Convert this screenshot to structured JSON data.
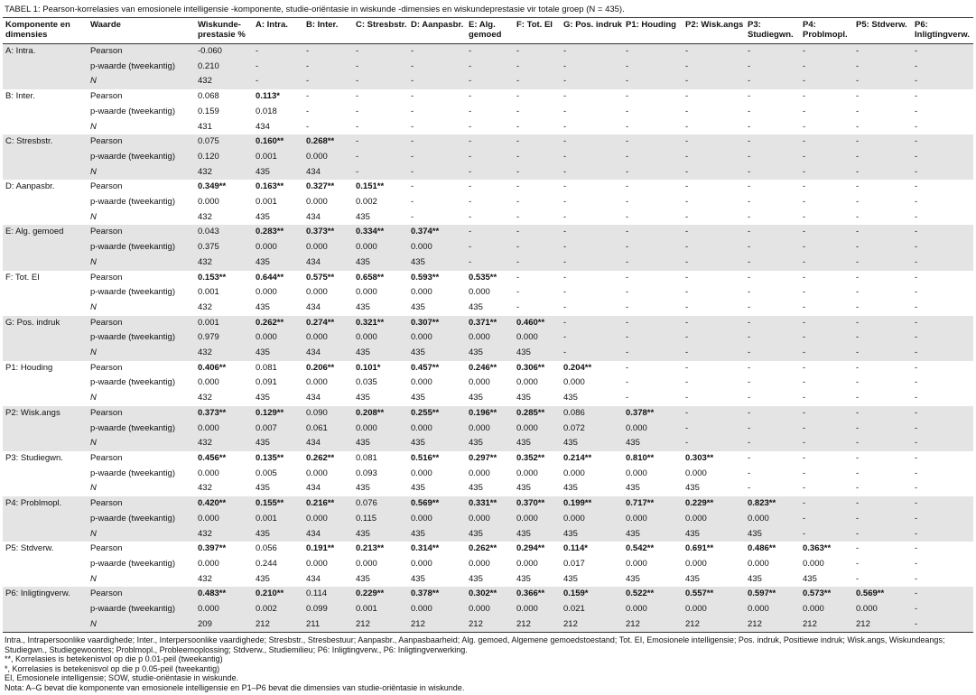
{
  "title": "TABEL 1: Pearson-korrelasies van emosionele intelligensie -komponente, studie-oriëntasie in wiskunde -dimensies en wiskundeprestasie vir totale groep (N = 435).",
  "columns": [
    "Komponente en dimensies",
    "Waarde",
    "Wiskunde-prestasie %",
    "A: Intra.",
    "B: Inter.",
    "C: Stresbstr.",
    "D: Aanpasbr.",
    "E: Alg. gemoed",
    "F: Tot. EI",
    "G: Pos. indruk",
    "P1: Houding",
    "P2: Wisk.angs",
    "P3: Studiegwn.",
    "P4: Problmopl.",
    "P5: Stdverw.",
    "P6: Inligtingverw."
  ],
  "groups": [
    {
      "label": "A: Intra.",
      "rows": [
        {
          "label": "Pearson",
          "cells": [
            "-0.060",
            "-",
            "-",
            "-",
            "-",
            "-",
            "-",
            "-",
            "-",
            "-",
            "-",
            "-",
            "-",
            "-"
          ]
        },
        {
          "label": "p-waarde (tweekantig)",
          "cells": [
            "0.210",
            "-",
            "-",
            "-",
            "-",
            "-",
            "-",
            "-",
            "-",
            "-",
            "-",
            "-",
            "-",
            "-"
          ]
        },
        {
          "label": "N",
          "cells": [
            "432",
            "-",
            "-",
            "-",
            "-",
            "-",
            "-",
            "-",
            "-",
            "-",
            "-",
            "-",
            "-",
            "-"
          ]
        }
      ]
    },
    {
      "label": "B: Inter.",
      "rows": [
        {
          "label": "Pearson",
          "cells": [
            "0.068",
            "0.113*",
            "-",
            "-",
            "-",
            "-",
            "-",
            "-",
            "-",
            "-",
            "-",
            "-",
            "-",
            "-"
          ]
        },
        {
          "label": "p-waarde (tweekantig)",
          "cells": [
            "0.159",
            "0.018",
            "-",
            "-",
            "-",
            "-",
            "-",
            "-",
            "-",
            "-",
            "-",
            "-",
            "-",
            "-"
          ]
        },
        {
          "label": "N",
          "cells": [
            "431",
            "434",
            "-",
            "-",
            "-",
            "-",
            "-",
            "-",
            "-",
            "-",
            "-",
            "-",
            "-",
            "-"
          ]
        }
      ]
    },
    {
      "label": "C: Stresbstr.",
      "rows": [
        {
          "label": "Pearson",
          "cells": [
            "0.075",
            "0.160**",
            "0.268**",
            "-",
            "-",
            "-",
            "-",
            "-",
            "-",
            "-",
            "-",
            "-",
            "-",
            "-"
          ]
        },
        {
          "label": "p-waarde (tweekantig)",
          "cells": [
            "0.120",
            "0.001",
            "0.000",
            "-",
            "-",
            "-",
            "-",
            "-",
            "-",
            "-",
            "-",
            "-",
            "-",
            "-"
          ]
        },
        {
          "label": "N",
          "cells": [
            "432",
            "435",
            "434",
            "-",
            "-",
            "-",
            "-",
            "-",
            "-",
            "-",
            "-",
            "-",
            "-",
            "-"
          ]
        }
      ]
    },
    {
      "label": "D: Aanpasbr.",
      "rows": [
        {
          "label": "Pearson",
          "cells": [
            "0.349**",
            "0.163**",
            "0.327**",
            "0.151**",
            "-",
            "-",
            "-",
            "-",
            "-",
            "-",
            "-",
            "-",
            "-",
            "-"
          ]
        },
        {
          "label": "p-waarde (tweekantig)",
          "cells": [
            "0.000",
            "0.001",
            "0.000",
            "0.002",
            "-",
            "-",
            "-",
            "-",
            "-",
            "-",
            "-",
            "-",
            "-",
            "-"
          ]
        },
        {
          "label": "N",
          "cells": [
            "432",
            "435",
            "434",
            "435",
            "-",
            "-",
            "-",
            "-",
            "-",
            "-",
            "-",
            "-",
            "-",
            "-"
          ]
        }
      ]
    },
    {
      "label": "E: Alg. gemoed",
      "rows": [
        {
          "label": "Pearson",
          "cells": [
            "0.043",
            "0.283**",
            "0.373**",
            "0.334**",
            "0.374**",
            "-",
            "-",
            "-",
            "-",
            "-",
            "-",
            "-",
            "-",
            "-"
          ]
        },
        {
          "label": "p-waarde (tweekantig)",
          "cells": [
            "0.375",
            "0.000",
            "0.000",
            "0.000",
            "0.000",
            "-",
            "-",
            "-",
            "-",
            "-",
            "-",
            "-",
            "-",
            "-"
          ]
        },
        {
          "label": "N",
          "cells": [
            "432",
            "435",
            "434",
            "435",
            "435",
            "-",
            "-",
            "-",
            "-",
            "-",
            "-",
            "-",
            "-",
            "-"
          ]
        }
      ]
    },
    {
      "label": "F: Tot. EI",
      "rows": [
        {
          "label": "Pearson",
          "cells": [
            "0.153**",
            "0.644**",
            "0.575**",
            "0.658**",
            "0.593**",
            "0.535**",
            "-",
            "-",
            "-",
            "-",
            "-",
            "-",
            "-",
            "-"
          ]
        },
        {
          "label": "p-waarde (tweekantig)",
          "cells": [
            "0.001",
            "0.000",
            "0.000",
            "0.000",
            "0.000",
            "0.000",
            "-",
            "-",
            "-",
            "-",
            "-",
            "-",
            "-",
            "-"
          ]
        },
        {
          "label": "N",
          "cells": [
            "432",
            "435",
            "434",
            "435",
            "435",
            "435",
            "-",
            "-",
            "-",
            "-",
            "-",
            "-",
            "-",
            "-"
          ]
        }
      ]
    },
    {
      "label": "G: Pos. indruk",
      "rows": [
        {
          "label": "Pearson",
          "cells": [
            "0.001",
            "0.262**",
            "0.274**",
            "0.321**",
            "0.307**",
            "0.371**",
            "0.460**",
            "-",
            "-",
            "-",
            "-",
            "-",
            "-",
            "-"
          ]
        },
        {
          "label": "p-waarde (tweekantig)",
          "cells": [
            "0.979",
            "0.000",
            "0.000",
            "0.000",
            "0.000",
            "0.000",
            "0.000",
            "-",
            "-",
            "-",
            "-",
            "-",
            "-",
            "-"
          ]
        },
        {
          "label": "N",
          "cells": [
            "432",
            "435",
            "434",
            "435",
            "435",
            "435",
            "435",
            "-",
            "-",
            "-",
            "-",
            "-",
            "-",
            "-"
          ]
        }
      ]
    },
    {
      "label": "P1: Houding",
      "rows": [
        {
          "label": "Pearson",
          "cells": [
            "0.406**",
            "0.081",
            "0.206**",
            "0.101*",
            "0.457**",
            "0.246**",
            "0.306**",
            "0.204**",
            "-",
            "-",
            "-",
            "-",
            "-",
            "-"
          ]
        },
        {
          "label": "p-waarde (tweekantig)",
          "cells": [
            "0.000",
            "0.091",
            "0.000",
            "0.035",
            "0.000",
            "0.000",
            "0.000",
            "0.000",
            "-",
            "-",
            "-",
            "-",
            "-",
            "-"
          ]
        },
        {
          "label": "N",
          "cells": [
            "432",
            "435",
            "434",
            "435",
            "435",
            "435",
            "435",
            "435",
            "-",
            "-",
            "-",
            "-",
            "-",
            "-"
          ]
        }
      ]
    },
    {
      "label": "P2: Wisk.angs",
      "rows": [
        {
          "label": "Pearson",
          "cells": [
            "0.373**",
            "0.129**",
            "0.090",
            "0.208**",
            "0.255**",
            "0.196**",
            "0.285**",
            "0.086",
            "0.378**",
            "-",
            "-",
            "-",
            "-",
            "-"
          ]
        },
        {
          "label": "p-waarde (tweekantig)",
          "cells": [
            "0.000",
            "0.007",
            "0.061",
            "0.000",
            "0.000",
            "0.000",
            "0.000",
            "0.072",
            "0.000",
            "-",
            "-",
            "-",
            "-",
            "-"
          ]
        },
        {
          "label": "N",
          "cells": [
            "432",
            "435",
            "434",
            "435",
            "435",
            "435",
            "435",
            "435",
            "435",
            "-",
            "-",
            "-",
            "-",
            "-"
          ]
        }
      ]
    },
    {
      "label": "P3: Studiegwn.",
      "rows": [
        {
          "label": "Pearson",
          "cells": [
            "0.456**",
            "0.135**",
            "0.262**",
            "0.081",
            "0.516**",
            "0.297**",
            "0.352**",
            "0.214**",
            "0.810**",
            "0.303**",
            "-",
            "-",
            "-",
            "-"
          ]
        },
        {
          "label": "p-waarde (tweekantig)",
          "cells": [
            "0.000",
            "0.005",
            "0.000",
            "0.093",
            "0.000",
            "0.000",
            "0.000",
            "0.000",
            "0.000",
            "0.000",
            "-",
            "-",
            "-",
            "-"
          ]
        },
        {
          "label": "N",
          "cells": [
            "432",
            "435",
            "434",
            "435",
            "435",
            "435",
            "435",
            "435",
            "435",
            "435",
            "-",
            "-",
            "-",
            "-"
          ]
        }
      ]
    },
    {
      "label": "P4: Problmopl.",
      "rows": [
        {
          "label": "Pearson",
          "cells": [
            "0.420**",
            "0.155**",
            "0.216**",
            "0.076",
            "0.569**",
            "0.331**",
            "0.370**",
            "0.199**",
            "0.717**",
            "0.229**",
            "0.823**",
            "-",
            "-",
            "-"
          ]
        },
        {
          "label": "p-waarde (tweekantig)",
          "cells": [
            "0.000",
            "0.001",
            "0.000",
            "0.115",
            "0.000",
            "0.000",
            "0.000",
            "0.000",
            "0.000",
            "0.000",
            "0.000",
            "-",
            "-",
            "-"
          ]
        },
        {
          "label": "N",
          "cells": [
            "432",
            "435",
            "434",
            "435",
            "435",
            "435",
            "435",
            "435",
            "435",
            "435",
            "435",
            "-",
            "-",
            "-"
          ]
        }
      ]
    },
    {
      "label": "P5: Stdverw.",
      "rows": [
        {
          "label": "Pearson",
          "cells": [
            "0.397**",
            "0.056",
            "0.191**",
            "0.213**",
            "0.314**",
            "0.262**",
            "0.294**",
            "0.114*",
            "0.542**",
            "0.691**",
            "0.486**",
            "0.363**",
            "-",
            "-"
          ]
        },
        {
          "label": "p-waarde (tweekantig)",
          "cells": [
            "0.000",
            "0.244",
            "0.000",
            "0.000",
            "0.000",
            "0.000",
            "0.000",
            "0.017",
            "0.000",
            "0.000",
            "0.000",
            "0.000",
            "-",
            "-"
          ]
        },
        {
          "label": "N",
          "cells": [
            "432",
            "435",
            "434",
            "435",
            "435",
            "435",
            "435",
            "435",
            "435",
            "435",
            "435",
            "435",
            "-",
            "-"
          ]
        }
      ]
    },
    {
      "label": "P6: Inligtingverw.",
      "rows": [
        {
          "label": "Pearson",
          "cells": [
            "0.483**",
            "0.210**",
            "0.114",
            "0.229**",
            "0.378**",
            "0.302**",
            "0.366**",
            "0.159*",
            "0.522**",
            "0.557**",
            "0.597**",
            "0.573**",
            "0.569**",
            "-"
          ]
        },
        {
          "label": "p-waarde (tweekantig)",
          "cells": [
            "0.000",
            "0.002",
            "0.099",
            "0.001",
            "0.000",
            "0.000",
            "0.000",
            "0.021",
            "0.000",
            "0.000",
            "0.000",
            "0.000",
            "0.000",
            "-"
          ]
        },
        {
          "label": "N",
          "cells": [
            "209",
            "212",
            "211",
            "212",
            "212",
            "212",
            "212",
            "212",
            "212",
            "212",
            "212",
            "212",
            "212",
            "-"
          ]
        }
      ]
    }
  ],
  "footnotes": [
    "Intra., Intrapersoonlike vaardighede; Inter., Interpersoonlike vaardighede; Stresbstr., Stresbestuur; Aanpasbr., Aanpasbaarheid; Alg. gemoed, Algemene gemoedstoestand; Tot. EI, Emosionele intelligensie; Pos. indruk, Positiewe indruk; Wisk.angs, Wiskundeangs; Studiegwn., Studiegewoontes; Problmopl., Probleemoplossing; Stdverw., Studiemilieu; P6: Inligtingverw., P6: Inligtingverwerking.",
    "**, Korrelasies is betekenisvol op die p 0.01-peil (tweekantig)",
    "*, Korrelasies is betekenisvol op die p 0.05-peil (tweekantig)",
    "EI, Emosionele intelligensie; SOW, studie-oriëntasie in wiskunde.",
    "Nota: A–G bevat die komponente van emosionele intelligensie en P1–P6 bevat die dimensies van studie-oriëntasie in wiskunde."
  ]
}
